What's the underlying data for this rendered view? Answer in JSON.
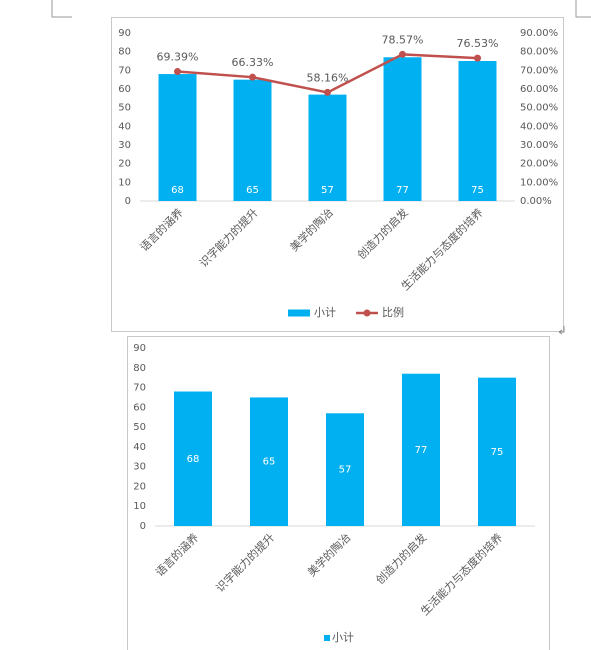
{
  "chart_data": [
    {
      "type": "bar",
      "categories": [
        "语言的涵养",
        "识字能力的提升",
        "美学的陶冶",
        "创造力的启发",
        "生活能力与态度的培养"
      ],
      "series": [
        {
          "name": "小计",
          "color": "#00b0f0",
          "values": [
            68,
            65,
            57,
            77,
            75
          ]
        },
        {
          "name": "比例",
          "type": "line",
          "axis": "y2",
          "color": "#c0504d",
          "values": [
            69.39,
            66.33,
            58.16,
            78.57,
            76.53
          ],
          "value_labels": [
            "69.39%",
            "66.33%",
            "58.16%",
            "78.57%",
            "76.53%"
          ]
        }
      ],
      "ylim": [
        0,
        90
      ],
      "yticks": [
        0,
        10,
        20,
        30,
        40,
        50,
        60,
        70,
        80,
        90
      ],
      "y2lim": [
        0,
        90
      ],
      "y2ticks": [
        {
          "value": 0,
          "label": "0.00%"
        },
        {
          "value": 10,
          "label": "10.00%"
        },
        {
          "value": 20,
          "label": "20.00%"
        },
        {
          "value": 30,
          "label": "30.00%"
        },
        {
          "value": 40,
          "label": "40.00%"
        },
        {
          "value": 50,
          "label": "50.00%"
        },
        {
          "value": 60,
          "label": "60.00%"
        },
        {
          "value": 70,
          "label": "70.00%"
        },
        {
          "value": 80,
          "label": "80.00%"
        },
        {
          "value": 90,
          "label": "90.00%"
        }
      ],
      "legend": "bottom"
    },
    {
      "type": "bar",
      "categories": [
        "语言的涵养",
        "识字能力的提升",
        "美学的陶冶",
        "创造力的启发",
        "生活能力与态度的培养"
      ],
      "series": [
        {
          "name": "小计",
          "color": "#00b0f0",
          "values": [
            68,
            65,
            57,
            77,
            75
          ]
        }
      ],
      "ylim": [
        0,
        90
      ],
      "yticks": [
        0,
        10,
        20,
        30,
        40,
        50,
        60,
        70,
        80,
        90
      ],
      "legend": "bottom"
    }
  ]
}
